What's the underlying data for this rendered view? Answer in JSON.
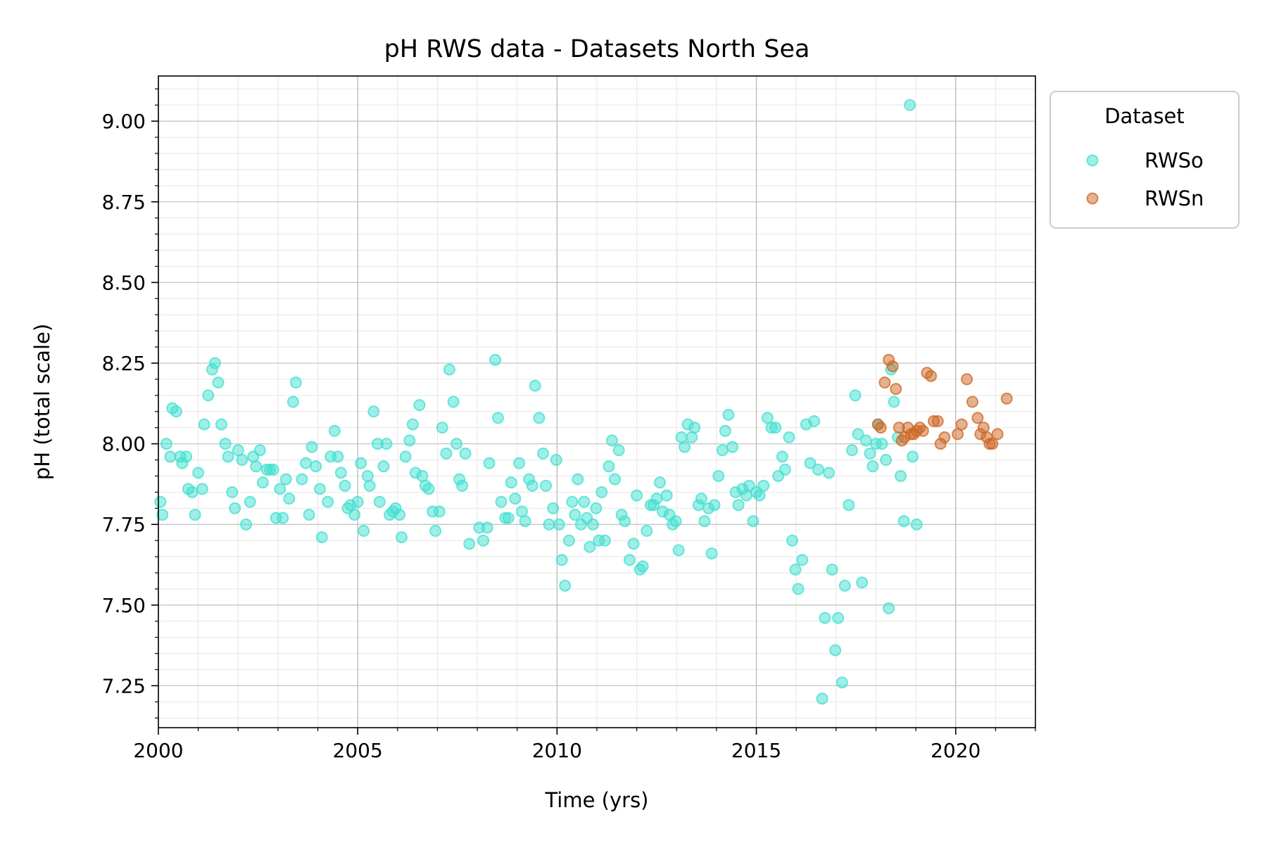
{
  "chart_data": {
    "type": "scatter",
    "title": "pH RWS data - Datasets North Sea",
    "xlabel": "Time (yrs)",
    "ylabel": "pH (total scale)",
    "xlim": [
      2000,
      2022
    ],
    "ylim": [
      7.12,
      9.14
    ],
    "xticks": [
      2000,
      2005,
      2010,
      2015,
      2020
    ],
    "xtick_labels": [
      "2000",
      "2005",
      "2010",
      "2015",
      "2020"
    ],
    "yticks": [
      7.25,
      7.5,
      7.75,
      8.0,
      8.25,
      8.5,
      8.75,
      9.0
    ],
    "ytick_labels": [
      "7.25",
      "7.50",
      "7.75",
      "8.00",
      "8.25",
      "8.50",
      "8.75",
      "9.00"
    ],
    "grid": "major and minor",
    "legend": {
      "title": "Dataset",
      "placement": "outside upper-right"
    },
    "series": [
      {
        "name": "RWSo",
        "color": "#40e0d0",
        "points": [
          [
            2000.05,
            7.82
          ],
          [
            2000.1,
            7.78
          ],
          [
            2000.2,
            8.0
          ],
          [
            2000.3,
            7.96
          ],
          [
            2000.35,
            8.11
          ],
          [
            2000.45,
            8.1
          ],
          [
            2000.55,
            7.96
          ],
          [
            2000.6,
            7.94
          ],
          [
            2000.7,
            7.96
          ],
          [
            2000.75,
            7.86
          ],
          [
            2000.85,
            7.85
          ],
          [
            2000.92,
            7.78
          ],
          [
            2001.0,
            7.91
          ],
          [
            2001.1,
            7.86
          ],
          [
            2001.15,
            8.06
          ],
          [
            2001.25,
            8.15
          ],
          [
            2001.35,
            8.23
          ],
          [
            2001.42,
            8.25
          ],
          [
            2001.5,
            8.19
          ],
          [
            2001.58,
            8.06
          ],
          [
            2001.68,
            8.0
          ],
          [
            2001.75,
            7.96
          ],
          [
            2001.85,
            7.85
          ],
          [
            2001.92,
            7.8
          ],
          [
            2002.0,
            7.98
          ],
          [
            2002.1,
            7.95
          ],
          [
            2002.2,
            7.75
          ],
          [
            2002.3,
            7.82
          ],
          [
            2002.38,
            7.96
          ],
          [
            2002.45,
            7.93
          ],
          [
            2002.55,
            7.98
          ],
          [
            2002.62,
            7.88
          ],
          [
            2002.72,
            7.92
          ],
          [
            2002.8,
            7.92
          ],
          [
            2002.88,
            7.92
          ],
          [
            2002.95,
            7.77
          ],
          [
            2003.05,
            7.86
          ],
          [
            2003.12,
            7.77
          ],
          [
            2003.2,
            7.89
          ],
          [
            2003.28,
            7.83
          ],
          [
            2003.38,
            8.13
          ],
          [
            2003.45,
            8.19
          ],
          [
            2003.6,
            7.89
          ],
          [
            2003.7,
            7.94
          ],
          [
            2003.78,
            7.78
          ],
          [
            2003.85,
            7.99
          ],
          [
            2003.95,
            7.93
          ],
          [
            2004.05,
            7.86
          ],
          [
            2004.1,
            7.71
          ],
          [
            2004.25,
            7.82
          ],
          [
            2004.32,
            7.96
          ],
          [
            2004.42,
            8.04
          ],
          [
            2004.5,
            7.96
          ],
          [
            2004.58,
            7.91
          ],
          [
            2004.68,
            7.87
          ],
          [
            2004.75,
            7.8
          ],
          [
            2004.82,
            7.81
          ],
          [
            2004.92,
            7.78
          ],
          [
            2005.0,
            7.82
          ],
          [
            2005.08,
            7.94
          ],
          [
            2005.15,
            7.73
          ],
          [
            2005.25,
            7.9
          ],
          [
            2005.3,
            7.87
          ],
          [
            2005.4,
            8.1
          ],
          [
            2005.5,
            8.0
          ],
          [
            2005.55,
            7.82
          ],
          [
            2005.65,
            7.93
          ],
          [
            2005.72,
            8.0
          ],
          [
            2005.8,
            7.78
          ],
          [
            2005.88,
            7.79
          ],
          [
            2005.95,
            7.8
          ],
          [
            2006.05,
            7.78
          ],
          [
            2006.1,
            7.71
          ],
          [
            2006.2,
            7.96
          ],
          [
            2006.3,
            8.01
          ],
          [
            2006.38,
            8.06
          ],
          [
            2006.45,
            7.91
          ],
          [
            2006.55,
            8.12
          ],
          [
            2006.62,
            7.9
          ],
          [
            2006.7,
            7.87
          ],
          [
            2006.78,
            7.86
          ],
          [
            2006.88,
            7.79
          ],
          [
            2006.95,
            7.73
          ],
          [
            2007.05,
            7.79
          ],
          [
            2007.12,
            8.05
          ],
          [
            2007.22,
            7.97
          ],
          [
            2007.3,
            8.23
          ],
          [
            2007.4,
            8.13
          ],
          [
            2007.48,
            8.0
          ],
          [
            2007.55,
            7.89
          ],
          [
            2007.62,
            7.87
          ],
          [
            2007.7,
            7.97
          ],
          [
            2007.8,
            7.69
          ],
          [
            2008.05,
            7.74
          ],
          [
            2008.15,
            7.7
          ],
          [
            2008.25,
            7.74
          ],
          [
            2008.3,
            7.94
          ],
          [
            2008.45,
            8.26
          ],
          [
            2008.52,
            8.08
          ],
          [
            2008.6,
            7.82
          ],
          [
            2008.7,
            7.77
          ],
          [
            2008.78,
            7.77
          ],
          [
            2008.85,
            7.88
          ],
          [
            2008.95,
            7.83
          ],
          [
            2009.05,
            7.94
          ],
          [
            2009.12,
            7.79
          ],
          [
            2009.2,
            7.76
          ],
          [
            2009.3,
            7.89
          ],
          [
            2009.38,
            7.87
          ],
          [
            2009.45,
            8.18
          ],
          [
            2009.55,
            8.08
          ],
          [
            2009.65,
            7.97
          ],
          [
            2009.72,
            7.87
          ],
          [
            2009.8,
            7.75
          ],
          [
            2009.9,
            7.8
          ],
          [
            2009.98,
            7.95
          ],
          [
            2010.05,
            7.75
          ],
          [
            2010.12,
            7.64
          ],
          [
            2010.2,
            7.56
          ],
          [
            2010.3,
            7.7
          ],
          [
            2010.38,
            7.82
          ],
          [
            2010.45,
            7.78
          ],
          [
            2010.52,
            7.89
          ],
          [
            2010.6,
            7.75
          ],
          [
            2010.68,
            7.82
          ],
          [
            2010.75,
            7.77
          ],
          [
            2010.82,
            7.68
          ],
          [
            2010.9,
            7.75
          ],
          [
            2010.98,
            7.8
          ],
          [
            2011.05,
            7.7
          ],
          [
            2011.12,
            7.85
          ],
          [
            2011.2,
            7.7
          ],
          [
            2011.3,
            7.93
          ],
          [
            2011.38,
            8.01
          ],
          [
            2011.45,
            7.89
          ],
          [
            2011.55,
            7.98
          ],
          [
            2011.62,
            7.78
          ],
          [
            2011.7,
            7.76
          ],
          [
            2011.82,
            7.64
          ],
          [
            2011.92,
            7.69
          ],
          [
            2012.0,
            7.84
          ],
          [
            2012.08,
            7.61
          ],
          [
            2012.15,
            7.62
          ],
          [
            2012.25,
            7.73
          ],
          [
            2012.35,
            7.81
          ],
          [
            2012.42,
            7.81
          ],
          [
            2012.5,
            7.83
          ],
          [
            2012.58,
            7.88
          ],
          [
            2012.65,
            7.79
          ],
          [
            2012.75,
            7.84
          ],
          [
            2012.82,
            7.78
          ],
          [
            2012.9,
            7.75
          ],
          [
            2012.98,
            7.76
          ],
          [
            2013.05,
            7.67
          ],
          [
            2013.12,
            8.02
          ],
          [
            2013.2,
            7.99
          ],
          [
            2013.28,
            8.06
          ],
          [
            2013.38,
            8.02
          ],
          [
            2013.45,
            8.05
          ],
          [
            2013.55,
            7.81
          ],
          [
            2013.62,
            7.83
          ],
          [
            2013.7,
            7.76
          ],
          [
            2013.8,
            7.8
          ],
          [
            2013.88,
            7.66
          ],
          [
            2013.95,
            7.81
          ],
          [
            2014.05,
            7.9
          ],
          [
            2014.15,
            7.98
          ],
          [
            2014.22,
            8.04
          ],
          [
            2014.3,
            8.09
          ],
          [
            2014.4,
            7.99
          ],
          [
            2014.48,
            7.85
          ],
          [
            2014.55,
            7.81
          ],
          [
            2014.65,
            7.86
          ],
          [
            2014.75,
            7.84
          ],
          [
            2014.82,
            7.87
          ],
          [
            2014.92,
            7.76
          ],
          [
            2015.0,
            7.85
          ],
          [
            2015.08,
            7.84
          ],
          [
            2015.18,
            7.87
          ],
          [
            2015.28,
            8.08
          ],
          [
            2015.38,
            8.05
          ],
          [
            2015.48,
            8.05
          ],
          [
            2015.55,
            7.9
          ],
          [
            2015.65,
            7.96
          ],
          [
            2015.72,
            7.92
          ],
          [
            2015.82,
            8.02
          ],
          [
            2015.9,
            7.7
          ],
          [
            2015.98,
            7.61
          ],
          [
            2016.05,
            7.55
          ],
          [
            2016.15,
            7.64
          ],
          [
            2016.25,
            8.06
          ],
          [
            2016.35,
            7.94
          ],
          [
            2016.45,
            8.07
          ],
          [
            2016.55,
            7.92
          ],
          [
            2016.65,
            7.21
          ],
          [
            2016.72,
            7.46
          ],
          [
            2016.82,
            7.91
          ],
          [
            2016.9,
            7.61
          ],
          [
            2016.98,
            7.36
          ],
          [
            2017.05,
            7.46
          ],
          [
            2017.15,
            7.26
          ],
          [
            2017.22,
            7.56
          ],
          [
            2017.32,
            7.81
          ],
          [
            2017.4,
            7.98
          ],
          [
            2017.48,
            8.15
          ],
          [
            2017.55,
            8.03
          ],
          [
            2017.65,
            7.57
          ],
          [
            2017.75,
            8.01
          ],
          [
            2017.85,
            7.97
          ],
          [
            2017.92,
            7.93
          ],
          [
            2018.0,
            8.0
          ],
          [
            2018.05,
            8.06
          ],
          [
            2018.15,
            8.0
          ],
          [
            2018.25,
            7.95
          ],
          [
            2018.32,
            7.49
          ],
          [
            2018.38,
            8.23
          ],
          [
            2018.45,
            8.13
          ],
          [
            2018.55,
            8.02
          ],
          [
            2018.62,
            7.9
          ],
          [
            2018.7,
            7.76
          ],
          [
            2018.85,
            9.05
          ],
          [
            2018.92,
            7.96
          ],
          [
            2019.02,
            7.75
          ]
        ]
      },
      {
        "name": "RWSn",
        "color": "#cc6622",
        "points": [
          [
            2018.05,
            8.06
          ],
          [
            2018.12,
            8.05
          ],
          [
            2018.22,
            8.19
          ],
          [
            2018.32,
            8.26
          ],
          [
            2018.42,
            8.24
          ],
          [
            2018.5,
            8.17
          ],
          [
            2018.58,
            8.05
          ],
          [
            2018.65,
            8.01
          ],
          [
            2018.72,
            8.02
          ],
          [
            2018.8,
            8.05
          ],
          [
            2018.88,
            8.03
          ],
          [
            2018.95,
            8.03
          ],
          [
            2019.02,
            8.04
          ],
          [
            2019.1,
            8.05
          ],
          [
            2019.18,
            8.04
          ],
          [
            2019.28,
            8.22
          ],
          [
            2019.38,
            8.21
          ],
          [
            2019.45,
            8.07
          ],
          [
            2019.55,
            8.07
          ],
          [
            2019.62,
            8.0
          ],
          [
            2019.72,
            8.02
          ],
          [
            2020.05,
            8.03
          ],
          [
            2020.15,
            8.06
          ],
          [
            2020.28,
            8.2
          ],
          [
            2020.42,
            8.13
          ],
          [
            2020.55,
            8.08
          ],
          [
            2020.62,
            8.03
          ],
          [
            2020.7,
            8.05
          ],
          [
            2020.78,
            8.02
          ],
          [
            2020.85,
            8.0
          ],
          [
            2020.92,
            8.0
          ],
          [
            2021.05,
            8.03
          ],
          [
            2021.28,
            8.14
          ]
        ]
      }
    ]
  }
}
